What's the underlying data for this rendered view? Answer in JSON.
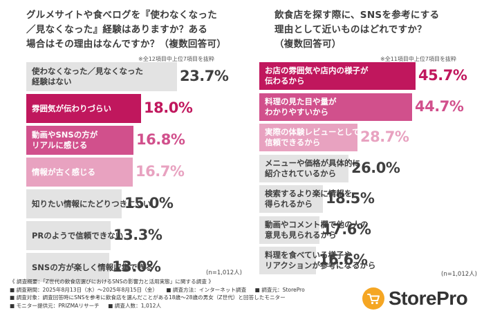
{
  "colors": {
    "gray": "#e3e3e3",
    "dark_pink": "#c0175d",
    "mid_pink": "#d1508c",
    "light_pink": "#e8a2c0",
    "gray_text": "#3f3f3f",
    "brand_orange": "#f5a623"
  },
  "chart_data": [
    {
      "type": "bar",
      "title": "グルメサイトや食べログを『使わなくなった／見なくなった』経験はありますか？ある場合はその理由はなんですか？（複数回答可）",
      "note": "※全12項目中上位7項目を抜粋",
      "n": "(n=1,012人)",
      "unit": "%",
      "xlim": [
        0,
        100
      ],
      "categories": [
        "使わなくなった／見なくなった経験はない",
        "雰囲気が伝わりづらい",
        "動画やSNSの方がリアルに感じる",
        "情報が古く感じる",
        "知りたい情報にたどりつきにくい",
        "PRのようで信頼できない",
        "SNSの方が楽しく情報収集できる"
      ],
      "values": [
        23.7,
        18.0,
        16.8,
        16.7,
        15.0,
        13.3,
        13.0
      ],
      "value_labels": [
        "23.7%",
        "18.0%",
        "16.8%",
        "16.7%",
        "15.0%",
        "13.3%",
        "13.0%"
      ]
    },
    {
      "type": "bar",
      "title": "飲食店を探す際に、SNSを参考にする理由として近いものはどれですか？（複数回答可）",
      "note": "※全11項目中上位7項目を抜粋",
      "n": "(n=1,012人)",
      "unit": "%",
      "xlim": [
        0,
        100
      ],
      "categories": [
        "お店の雰囲気や店内の様子が伝わるから",
        "料理の見た目や量がわかりやすいから",
        "実際の体験レビューとして信頼できるから",
        "メニューや価格が具体的に紹介されているから",
        "検索するより楽に情報を得られるから",
        "動画やコメント欄で他の人の意見も見られるから",
        "料理を食べている様子やリアクションが参考になるから"
      ],
      "values": [
        45.7,
        44.7,
        28.7,
        26.0,
        18.5,
        17.6,
        16.6
      ],
      "value_labels": [
        "45.7%",
        "44.7%",
        "28.7%",
        "26.0%",
        "18.5%",
        "17.6%",
        "16.6%"
      ]
    }
  ],
  "left": {
    "title_lines": [
      "グルメサイトや食べログを『使わなくなった",
      "／見なくなった』経験はありますか？ある",
      "場合はその理由はなんですか？（複数回答可）"
    ],
    "label_lines": [
      [
        "使わなくなった／見なくなった",
        "経験はない"
      ],
      [
        "雰囲気が伝わりづらい"
      ],
      [
        "動画やSNSの方が",
        "リアルに感じる"
      ],
      [
        "情報が古く感じる"
      ],
      [
        "知りたい情報にたどりつきにくい"
      ],
      [
        "PRのようで信頼できない"
      ],
      [
        "SNSの方が楽しく情報収集できる"
      ]
    ]
  },
  "right": {
    "title_lines": [
      "飲食店を探す際に、SNSを参考にする",
      "理由として近いものはどれですか？",
      "（複数回答可）"
    ],
    "label_lines": [
      [
        "お店の雰囲気や店内の様子が",
        "伝わるから"
      ],
      [
        "料理の見た目や量が",
        "わかりやすいから"
      ],
      [
        "実際の体験レビューとして",
        "信頼できるから"
      ],
      [
        "メニューや価格が具体的に",
        "紹介されているから"
      ],
      [
        "検索するより楽に情報を",
        "得られるから"
      ],
      [
        "動画やコメント欄で他の人の",
        "意見も見られるから"
      ],
      [
        "料理を食べている様子や",
        "リアクションが参考になるから"
      ]
    ]
  },
  "footer": {
    "line1": "《 調査概要：「Z世代の飲食店選びにおけるSNSの影響力と活用実態」に関する調査 》",
    "period": "■ 調査期間：2025年8月13日（水）～2025年8月15日（金）",
    "method": "■ 調査方法：インターネット調査",
    "source": "■ 調査元：StorePro",
    "target": "■ 調査対象：調査回答時にSNSを参考に飲食店を選んだことがある18歳～28歳の男女（Z世代）と回答したモニター",
    "provider": "■ モニター提供元：PRIZMAリサーチ",
    "count": "■ 調査人数：1,012人"
  },
  "brand": {
    "name": "StorePro",
    "icon": "shopping-cart-icon"
  }
}
